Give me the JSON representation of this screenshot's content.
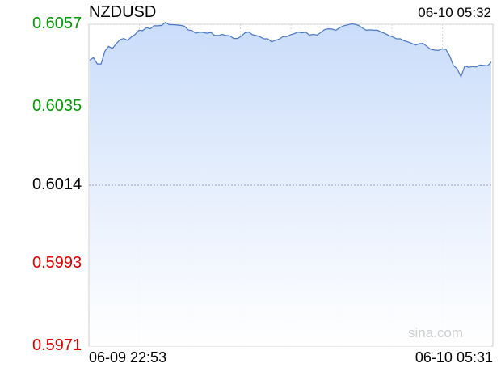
{
  "header": {
    "symbol": "NZDUSD",
    "timestamp": "06-10 05:32"
  },
  "watermark": "sina.com",
  "colors": {
    "line": "#4a77c4",
    "fill_top": "#c9dcfa",
    "fill_bottom": "#ffffff",
    "up": "#009900",
    "down": "#dd0000",
    "neutral": "#000000",
    "grid": "#d8d8d8"
  },
  "chart_data": {
    "type": "area",
    "title": "NZDUSD",
    "xlabel": "",
    "ylabel": "",
    "ylim": [
      0.5971,
      0.6057
    ],
    "reference_value": 0.6014,
    "grid": true,
    "y_ticks": [
      {
        "label": "0.6057",
        "value": 0.6057,
        "trend": "up"
      },
      {
        "label": "0.6035",
        "value": 0.6035,
        "trend": "up"
      },
      {
        "label": "0.6014",
        "value": 0.6014,
        "trend": "neutral"
      },
      {
        "label": "0.5993",
        "value": 0.5993,
        "trend": "down"
      },
      {
        "label": "0.5971",
        "value": 0.5971,
        "trend": "down"
      }
    ],
    "x_tick_labels": [
      "06-09 22:53",
      "06-10 05:31"
    ],
    "series": [
      {
        "values": [
          0.60474,
          0.60481,
          0.60464,
          0.60464,
          0.60498,
          0.60511,
          0.60505,
          0.60518,
          0.60529,
          0.60532,
          0.60527,
          0.60536,
          0.60543,
          0.60554,
          0.60553,
          0.60561,
          0.60558,
          0.60566,
          0.60566,
          0.60567,
          0.60575,
          0.60569,
          0.60569,
          0.60568,
          0.60567,
          0.60565,
          0.60555,
          0.60553,
          0.60546,
          0.60549,
          0.60548,
          0.60546,
          0.60548,
          0.6054,
          0.6054,
          0.60543,
          0.6054,
          0.60539,
          0.60532,
          0.60532,
          0.60538,
          0.60547,
          0.60549,
          0.60542,
          0.6054,
          0.60536,
          0.60531,
          0.60531,
          0.60523,
          0.60527,
          0.6053,
          0.60537,
          0.60537,
          0.60542,
          0.60545,
          0.60549,
          0.60547,
          0.60549,
          0.60541,
          0.60543,
          0.60541,
          0.60548,
          0.60556,
          0.60558,
          0.60557,
          0.60554,
          0.60561,
          0.60566,
          0.60568,
          0.60571,
          0.6057,
          0.60567,
          0.6056,
          0.60554,
          0.60555,
          0.60554,
          0.60554,
          0.60549,
          0.60545,
          0.6054,
          0.60536,
          0.60531,
          0.60531,
          0.60526,
          0.60523,
          0.60519,
          0.60514,
          0.60518,
          0.60519,
          0.60511,
          0.60503,
          0.60501,
          0.605,
          0.60504,
          0.60503,
          0.60486,
          0.6046,
          0.60451,
          0.6043,
          0.60459,
          0.60455,
          0.60457,
          0.60456,
          0.60461,
          0.6046,
          0.60459,
          0.60469
        ]
      }
    ]
  }
}
